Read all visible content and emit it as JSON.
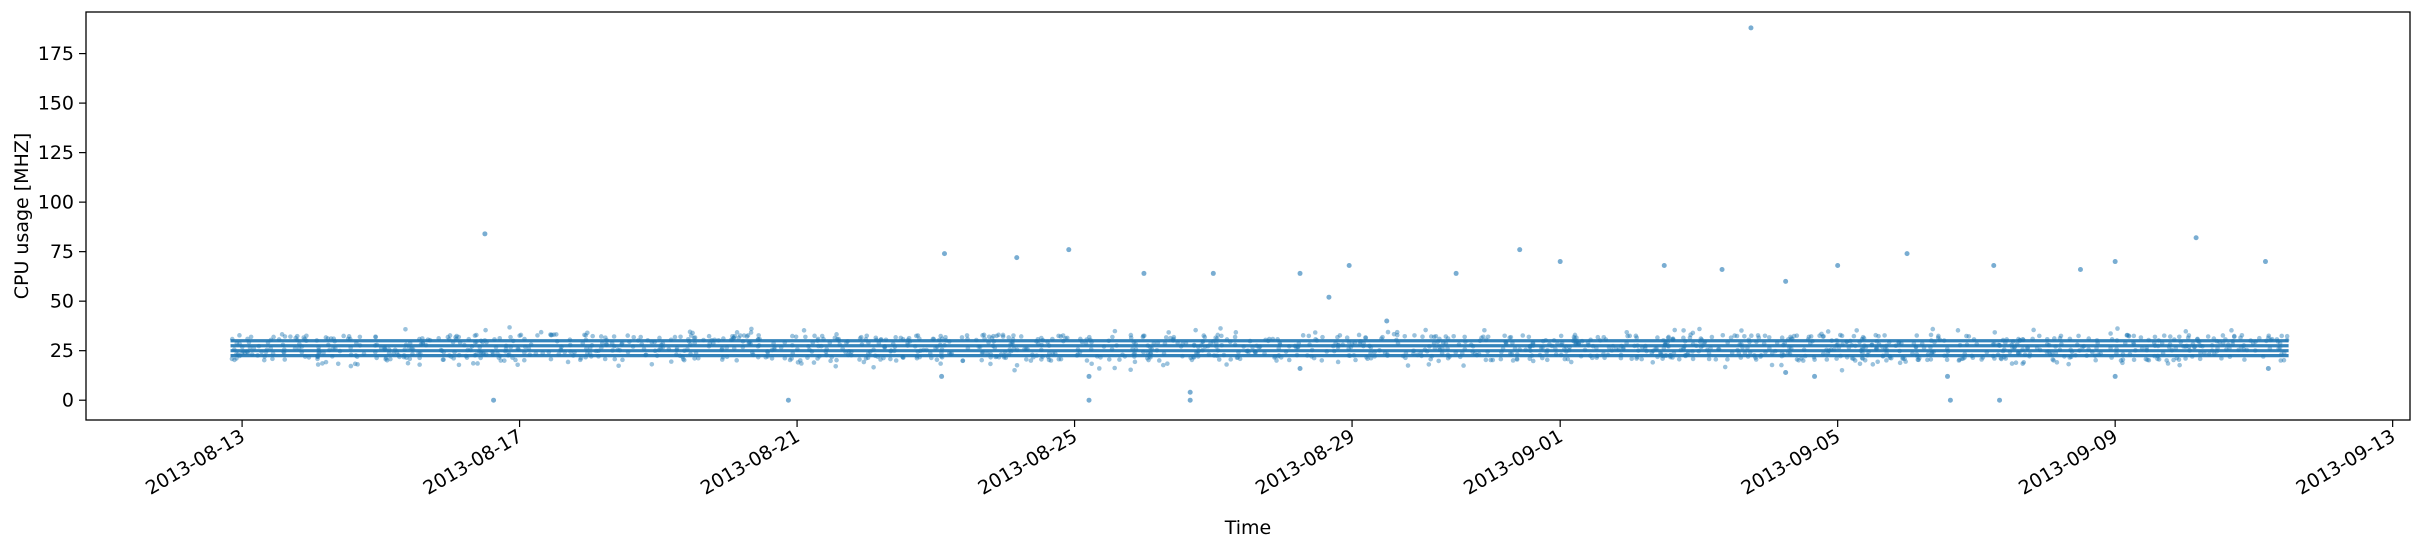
{
  "chart_data": {
    "type": "scatter",
    "title": "",
    "xlabel": "Time",
    "ylabel": "CPU usage [MHZ]",
    "x_is_date": true,
    "xlim": [
      "2013-08-10T18:00",
      "2013-09-13T06:00"
    ],
    "ylim": [
      -10,
      196
    ],
    "xticks": [
      "2013-08-13",
      "2013-08-17",
      "2013-08-21",
      "2013-08-25",
      "2013-08-29",
      "2013-09-01",
      "2013-09-05",
      "2013-09-09",
      "2013-09-13"
    ],
    "yticks": [
      0,
      25,
      50,
      75,
      100,
      125,
      150,
      175
    ],
    "grid": false,
    "legend": "none",
    "marker_color": "#1f77b4",
    "marker_alpha": 0.45,
    "x_range_of_samples": [
      "2013-08-12T20:00",
      "2013-09-11T12:00"
    ],
    "baseline_levels_mhz": [
      22.5,
      25,
      27.5,
      30
    ],
    "baseline_description": "dense near-continuous samples at ~22.5, 25, 27.5 and 30 MHz across the full time range, with scattered jitter between 15 and 35 MHz",
    "notable_points": [
      {
        "x": "2013-08-16T12:00",
        "y": 84
      },
      {
        "x": "2013-08-16T15:00",
        "y": 0
      },
      {
        "x": "2013-08-20T21:00",
        "y": 0
      },
      {
        "x": "2013-08-23T03:00",
        "y": 74
      },
      {
        "x": "2013-08-23T02:00",
        "y": 12
      },
      {
        "x": "2013-08-24T04:00",
        "y": 72
      },
      {
        "x": "2013-08-24T22:00",
        "y": 76
      },
      {
        "x": "2013-08-25T05:00",
        "y": 0
      },
      {
        "x": "2013-08-25T05:00",
        "y": 12
      },
      {
        "x": "2013-08-26T00:00",
        "y": 64
      },
      {
        "x": "2013-08-26T16:00",
        "y": 4
      },
      {
        "x": "2013-08-26T16:00",
        "y": 0
      },
      {
        "x": "2013-08-27T00:00",
        "y": 64
      },
      {
        "x": "2013-08-28T06:00",
        "y": 64
      },
      {
        "x": "2013-08-28T06:00",
        "y": 16
      },
      {
        "x": "2013-08-28T16:00",
        "y": 52
      },
      {
        "x": "2013-08-28T23:00",
        "y": 68
      },
      {
        "x": "2013-08-29T12:00",
        "y": 40
      },
      {
        "x": "2013-08-30T12:00",
        "y": 64
      },
      {
        "x": "2013-08-31T10:00",
        "y": 76
      },
      {
        "x": "2013-09-01T00:00",
        "y": 70
      },
      {
        "x": "2013-09-02T12:00",
        "y": 68
      },
      {
        "x": "2013-09-03T08:00",
        "y": 66
      },
      {
        "x": "2013-09-03T18:00",
        "y": 188
      },
      {
        "x": "2013-09-04T06:00",
        "y": 60
      },
      {
        "x": "2013-09-04T06:00",
        "y": 14
      },
      {
        "x": "2013-09-04T16:00",
        "y": 12
      },
      {
        "x": "2013-09-05T00:00",
        "y": 68
      },
      {
        "x": "2013-09-06T00:00",
        "y": 74
      },
      {
        "x": "2013-09-06T14:00",
        "y": 12
      },
      {
        "x": "2013-09-06T15:00",
        "y": 0
      },
      {
        "x": "2013-09-07T06:00",
        "y": 68
      },
      {
        "x": "2013-09-07T08:00",
        "y": 0
      },
      {
        "x": "2013-09-08T12:00",
        "y": 66
      },
      {
        "x": "2013-09-09T00:00",
        "y": 70
      },
      {
        "x": "2013-09-09T00:00",
        "y": 12
      },
      {
        "x": "2013-09-10T04:00",
        "y": 82
      },
      {
        "x": "2013-09-11T04:00",
        "y": 70
      },
      {
        "x": "2013-09-11T05:00",
        "y": 16
      }
    ]
  }
}
